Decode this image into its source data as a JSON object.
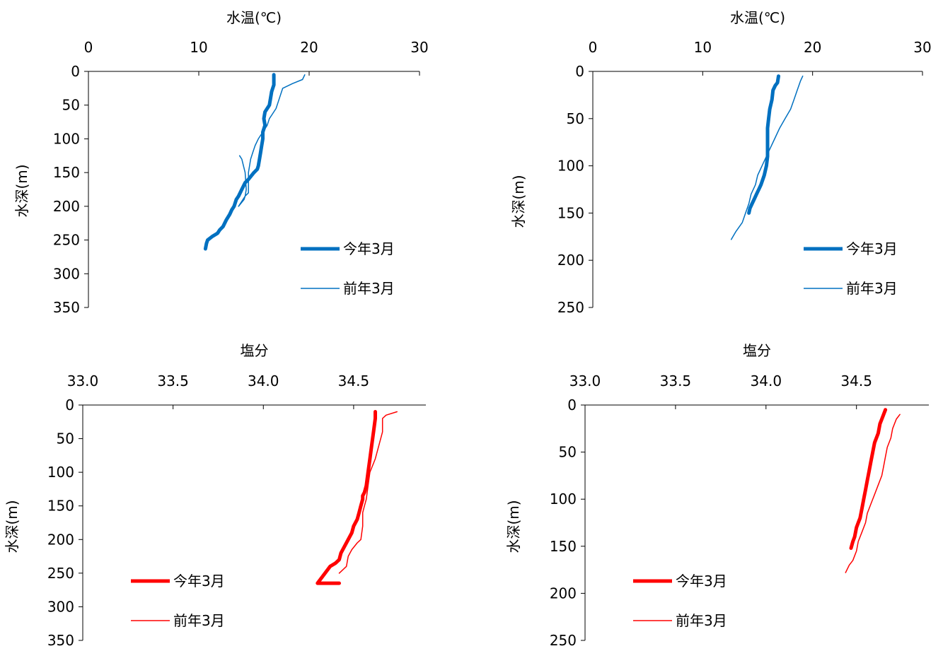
{
  "chart_data": [
    {
      "type": "line",
      "title": "",
      "xlabel": "水温(℃)",
      "ylabel": "水深(m)",
      "xlim": [
        0,
        30
      ],
      "ylim": [
        0,
        350
      ],
      "x_ticks": [
        0,
        10,
        20,
        30
      ],
      "y_ticks": [
        0,
        50,
        100,
        150,
        200,
        250,
        300,
        350
      ],
      "x_axis_position": "top",
      "y_inverted": true,
      "grid": false,
      "legend_position": "bottom-right",
      "series": [
        {
          "name": "今年3月",
          "color": "#0070C0",
          "width": 5,
          "x": [
            16.8,
            16.8,
            16.6,
            16.5,
            16.4,
            16.2,
            16.0,
            15.9,
            16.0,
            15.8,
            15.8,
            15.7,
            15.6,
            15.5,
            15.4,
            15.3,
            15.0,
            14.5,
            14.2,
            13.9,
            13.6,
            13.4,
            13.2,
            13.0,
            12.8,
            12.5,
            12.2,
            11.9,
            11.7,
            11.2,
            10.8,
            10.7,
            10.6
          ],
          "y": [
            5,
            20,
            30,
            40,
            50,
            55,
            60,
            70,
            80,
            90,
            100,
            110,
            120,
            130,
            140,
            145,
            150,
            160,
            165,
            175,
            185,
            190,
            200,
            205,
            212,
            220,
            230,
            235,
            240,
            245,
            250,
            255,
            263
          ]
        },
        {
          "name": "前年3月",
          "color": "#0070C0",
          "width": 1.5,
          "x": [
            19.6,
            19.4,
            18.5,
            17.6,
            17.3,
            17.0,
            16.6,
            16.4,
            16.2,
            15.4,
            15.1,
            14.9,
            14.7,
            14.5,
            14.5,
            14.5,
            14.2,
            14.1,
            13.6,
            14.0,
            14.2,
            14.3,
            14.2,
            13.9,
            13.7
          ],
          "y": [
            5,
            12,
            18,
            25,
            40,
            55,
            65,
            70,
            80,
            100,
            110,
            120,
            130,
            150,
            160,
            180,
            185,
            190,
            200,
            190,
            185,
            175,
            150,
            130,
            125
          ]
        }
      ]
    },
    {
      "type": "line",
      "title": "",
      "xlabel": "水温(℃)",
      "ylabel": "水深(m)",
      "xlim": [
        0,
        30
      ],
      "ylim": [
        0,
        250
      ],
      "x_ticks": [
        0,
        10,
        20,
        30
      ],
      "y_ticks": [
        0,
        50,
        100,
        150,
        200,
        250
      ],
      "x_axis_position": "top",
      "y_inverted": true,
      "grid": false,
      "legend_position": "bottom-right",
      "series": [
        {
          "name": "今年3月",
          "color": "#0070C0",
          "width": 5,
          "x": [
            16.9,
            16.8,
            16.6,
            16.4,
            16.3,
            16.1,
            16.0,
            15.9,
            15.9,
            15.9,
            15.9,
            15.8,
            15.6,
            15.3,
            15.1,
            14.9,
            14.7,
            14.5,
            14.3,
            14.2
          ],
          "y": [
            5,
            12,
            15,
            20,
            30,
            40,
            50,
            60,
            70,
            80,
            90,
            100,
            110,
            120,
            125,
            130,
            135,
            140,
            145,
            150
          ]
        },
        {
          "name": "前年3月",
          "color": "#0070C0",
          "width": 1.5,
          "x": [
            19.1,
            18.9,
            18.6,
            18.3,
            18.0,
            17.5,
            17.0,
            16.6,
            16.2,
            15.8,
            15.4,
            15.0,
            14.8,
            14.4,
            14.2,
            13.9,
            13.6,
            13.3,
            13.0,
            12.6
          ],
          "y": [
            5,
            10,
            20,
            30,
            40,
            50,
            60,
            70,
            80,
            90,
            100,
            110,
            120,
            130,
            140,
            150,
            160,
            165,
            170,
            178
          ]
        }
      ]
    },
    {
      "type": "line",
      "title": "",
      "xlabel": "塩分",
      "ylabel": "水深(m)",
      "xlim": [
        33.0,
        34.9
      ],
      "ylim": [
        0,
        350
      ],
      "x_ticks": [
        33.0,
        33.5,
        34.0,
        34.5
      ],
      "x_tick_labels": [
        "33.0",
        "33.5",
        "34.0",
        "34.5"
      ],
      "y_ticks": [
        0,
        50,
        100,
        150,
        200,
        250,
        300,
        350
      ],
      "x_axis_position": "top",
      "y_inverted": true,
      "grid": false,
      "legend_position": "bottom-left",
      "series": [
        {
          "name": "今年3月",
          "color": "#FF0000",
          "width": 5,
          "x": [
            34.62,
            34.62,
            34.61,
            34.6,
            34.59,
            34.58,
            34.57,
            34.56,
            34.55,
            34.55,
            34.54,
            34.53,
            34.52,
            34.5,
            34.49,
            34.47,
            34.45,
            34.43,
            34.42,
            34.4,
            34.37,
            34.3,
            34.42
          ],
          "y": [
            10,
            20,
            40,
            60,
            80,
            100,
            120,
            130,
            135,
            140,
            150,
            160,
            170,
            180,
            190,
            200,
            210,
            220,
            230,
            235,
            240,
            265,
            265
          ]
        },
        {
          "name": "前年3月",
          "color": "#FF0000",
          "width": 1.5,
          "x": [
            34.74,
            34.68,
            34.66,
            34.66,
            34.64,
            34.62,
            34.59,
            34.58,
            34.57,
            34.56,
            34.55,
            34.55,
            34.54,
            34.52,
            34.49,
            34.47,
            34.46,
            34.42
          ],
          "y": [
            10,
            15,
            20,
            40,
            60,
            80,
            100,
            120,
            140,
            150,
            160,
            180,
            200,
            205,
            215,
            225,
            240,
            250
          ]
        }
      ]
    },
    {
      "type": "line",
      "title": "",
      "xlabel": "塩分",
      "ylabel": "水深(m)",
      "xlim": [
        33.0,
        34.9
      ],
      "ylim": [
        0,
        250
      ],
      "x_ticks": [
        33.0,
        33.5,
        34.0,
        34.5
      ],
      "x_tick_labels": [
        "33.0",
        "33.5",
        "34.0",
        "34.5"
      ],
      "y_ticks": [
        0,
        50,
        100,
        150,
        200,
        250
      ],
      "x_axis_position": "top",
      "y_inverted": true,
      "grid": false,
      "legend_position": "bottom-left",
      "series": [
        {
          "name": "今年3月",
          "color": "#FF0000",
          "width": 5,
          "x": [
            34.66,
            34.65,
            34.64,
            34.63,
            34.62,
            34.6,
            34.59,
            34.58,
            34.57,
            34.56,
            34.55,
            34.54,
            34.53,
            34.52,
            34.51,
            34.5,
            34.49,
            34.48,
            34.47
          ],
          "y": [
            5,
            10,
            15,
            20,
            30,
            40,
            50,
            60,
            70,
            80,
            90,
            100,
            110,
            120,
            125,
            130,
            140,
            145,
            152
          ]
        },
        {
          "name": "前年3月",
          "color": "#FF0000",
          "width": 1.5,
          "x": [
            34.74,
            34.72,
            34.7,
            34.69,
            34.67,
            34.66,
            34.65,
            34.64,
            34.62,
            34.6,
            34.58,
            34.56,
            34.55,
            34.53,
            34.51,
            34.5,
            34.48,
            34.46,
            34.44
          ],
          "y": [
            10,
            15,
            25,
            35,
            45,
            55,
            65,
            75,
            85,
            95,
            105,
            115,
            125,
            135,
            145,
            155,
            165,
            170,
            178
          ]
        }
      ]
    }
  ]
}
